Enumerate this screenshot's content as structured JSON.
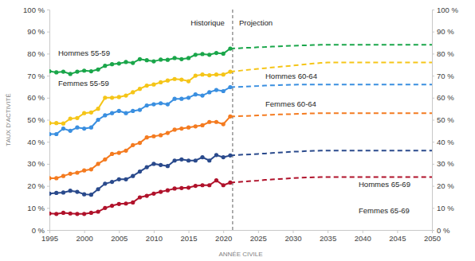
{
  "chart_data": {
    "type": "line",
    "y_label": "TAUX D'ACTIVITÉ",
    "x_label": "ANNÉE CIVILE",
    "annotations": [
      {
        "text": "Historique"
      },
      {
        "text": "Projection"
      }
    ],
    "projection_start": 2021,
    "grid": false,
    "x": [
      1995,
      1996,
      1997,
      1998,
      1999,
      2000,
      2001,
      2002,
      2003,
      2004,
      2005,
      2006,
      2007,
      2008,
      2009,
      2010,
      2011,
      2012,
      2013,
      2014,
      2015,
      2016,
      2017,
      2018,
      2019,
      2020,
      2021,
      2022,
      2023,
      2024,
      2025,
      2026,
      2027,
      2028,
      2029,
      2030,
      2031,
      2032,
      2033,
      2034,
      2035,
      2036,
      2037,
      2038,
      2039,
      2040,
      2041,
      2042,
      2043,
      2044,
      2045,
      2046,
      2047,
      2048,
      2049,
      2050
    ],
    "xlim": [
      1995,
      2050
    ],
    "xticks": [
      1995,
      2000,
      2005,
      2010,
      2015,
      2020,
      2025,
      2030,
      2035,
      2040,
      2045,
      2050
    ],
    "ylim": [
      0,
      100
    ],
    "yticks": [
      {
        "value": 0,
        "label": "0 %"
      },
      {
        "value": 10,
        "label": "10 %"
      },
      {
        "value": 20,
        "label": "20 %"
      },
      {
        "value": 30,
        "label": "30 %"
      },
      {
        "value": 40,
        "label": "40 %"
      },
      {
        "value": 50,
        "label": "50 %"
      },
      {
        "value": 60,
        "label": "60 %"
      },
      {
        "value": 70,
        "label": "70 %"
      },
      {
        "value": 80,
        "label": "80 %"
      },
      {
        "value": 90,
        "label": "90 %"
      },
      {
        "value": 100,
        "label": "100 %"
      }
    ],
    "y2lim": [
      0,
      100
    ],
    "y2ticks": [
      {
        "value": 0,
        "label": "0 %"
      },
      {
        "value": 10,
        "label": "10 %"
      },
      {
        "value": 20,
        "label": "20 %"
      },
      {
        "value": 30,
        "label": "30 %"
      },
      {
        "value": 40,
        "label": "40 %"
      },
      {
        "value": 50,
        "label": "50 %"
      },
      {
        "value": 60,
        "label": "60 %"
      },
      {
        "value": 70,
        "label": "70 %"
      },
      {
        "value": 80,
        "label": "80 %"
      },
      {
        "value": 90,
        "label": "90 %"
      },
      {
        "value": 100,
        "label": "100 %"
      }
    ],
    "series": [
      {
        "name": "Hommes 55-59",
        "color": "#1aa64a",
        "marker": "circle",
        "values": [
          72.0,
          71.5,
          71.8,
          70.8,
          71.8,
          72.3,
          72.0,
          72.8,
          74.5,
          75.2,
          75.5,
          76.2,
          75.8,
          77.5,
          77.0,
          76.5,
          77.3,
          77.2,
          78.0,
          77.5,
          78.0,
          79.5,
          79.8,
          79.5,
          80.3,
          80.0,
          82.3,
          82.4,
          82.6,
          82.7,
          82.9,
          83.0,
          83.2,
          83.3,
          83.5,
          83.6,
          83.7,
          83.8,
          83.9,
          84.0,
          84.0,
          84,
          84,
          84,
          84,
          84,
          84,
          84,
          84,
          84,
          84,
          84,
          84,
          84,
          84,
          84
        ]
      },
      {
        "name": "Femmes 55-59",
        "color": "#f5c518",
        "marker": "circle",
        "values": [
          48.5,
          48.5,
          48.3,
          50.5,
          50.8,
          53.0,
          53.3,
          55.0,
          60.0,
          60.0,
          60.3,
          61.0,
          62.5,
          64.0,
          65.5,
          66.0,
          67.0,
          67.8,
          68.5,
          68.2,
          67.5,
          70.0,
          70.5,
          70.2,
          70.5,
          70.5,
          71.8,
          72.1,
          72.5,
          72.8,
          73.1,
          73.4,
          73.7,
          74.0,
          74.3,
          74.6,
          74.9,
          75.2,
          75.5,
          75.8,
          76.0,
          76,
          76,
          76,
          76,
          76,
          76,
          76,
          76,
          76,
          76,
          76,
          76,
          76,
          76,
          76
        ]
      },
      {
        "name": "Hommes 60-64",
        "color": "#3a8fe0",
        "marker": "circle",
        "values": [
          43.5,
          43.5,
          46.0,
          45.0,
          46.5,
          46.0,
          46.5,
          50.0,
          52.0,
          53.0,
          54.0,
          53.0,
          54.0,
          54.5,
          56.5,
          57.0,
          57.5,
          57.0,
          59.5,
          59.5,
          60.0,
          61.5,
          61.0,
          62.5,
          63.5,
          63.0,
          64.8,
          64.9,
          65.0,
          65.2,
          65.3,
          65.5,
          65.6,
          65.7,
          65.8,
          65.9,
          66.0,
          66.0,
          66.0,
          66.0,
          66.0,
          66,
          66,
          66,
          66,
          66,
          66,
          66,
          66,
          66,
          66,
          66,
          66,
          66,
          66,
          66
        ]
      },
      {
        "name": "Femmes 60-64",
        "color": "#f47b20",
        "marker": "circle",
        "values": [
          23.5,
          23.5,
          24.5,
          25.5,
          26.0,
          27.0,
          27.5,
          30.0,
          32.0,
          34.5,
          35.0,
          36.0,
          38.5,
          39.5,
          42.0,
          42.5,
          43.0,
          44.0,
          45.5,
          46.0,
          46.5,
          47.0,
          47.5,
          49.0,
          49.0,
          48.0,
          51.5,
          51.6,
          51.7,
          51.8,
          52.0,
          52.1,
          52.3,
          52.4,
          52.5,
          52.6,
          52.7,
          52.8,
          52.9,
          53.0,
          53.0,
          53,
          53,
          53,
          53,
          53,
          53,
          53,
          53,
          53,
          53,
          53,
          53,
          53,
          53,
          53
        ]
      },
      {
        "name": "Hommes 65-69",
        "color": "#2a4a8c",
        "marker": "circle",
        "values": [
          16.5,
          16.8,
          17.0,
          17.8,
          17.3,
          16.2,
          16.0,
          18.5,
          21.0,
          21.8,
          23.0,
          23.0,
          24.5,
          26.5,
          28.5,
          30.0,
          29.5,
          29.0,
          31.5,
          32.0,
          31.5,
          31.5,
          33.0,
          31.5,
          34.0,
          33.0,
          33.8,
          34.0,
          34.2,
          34.3,
          34.5,
          34.7,
          34.9,
          35.1,
          35.3,
          35.5,
          35.6,
          35.8,
          35.9,
          36.0,
          36.0,
          36,
          36,
          36,
          36,
          36,
          36,
          36,
          36,
          36,
          36,
          36,
          36,
          36,
          36,
          36
        ]
      },
      {
        "name": "Femmes 65-69",
        "color": "#b0122b",
        "marker": "circle",
        "values": [
          7.5,
          7.3,
          7.8,
          7.5,
          7.3,
          7.3,
          7.8,
          8.3,
          10.0,
          11.0,
          11.8,
          12.0,
          12.5,
          14.8,
          15.5,
          16.5,
          17.3,
          18.0,
          18.8,
          19.0,
          19.2,
          20.0,
          20.3,
          20.3,
          22.5,
          20.3,
          21.5,
          21.7,
          22.0,
          22.2,
          22.4,
          22.7,
          22.9,
          23.1,
          23.3,
          23.5,
          23.7,
          23.8,
          23.9,
          24.0,
          24.0,
          24,
          24,
          24,
          24,
          24,
          24,
          24,
          24,
          24,
          24,
          24,
          24,
          24,
          24,
          24
        ]
      }
    ]
  }
}
